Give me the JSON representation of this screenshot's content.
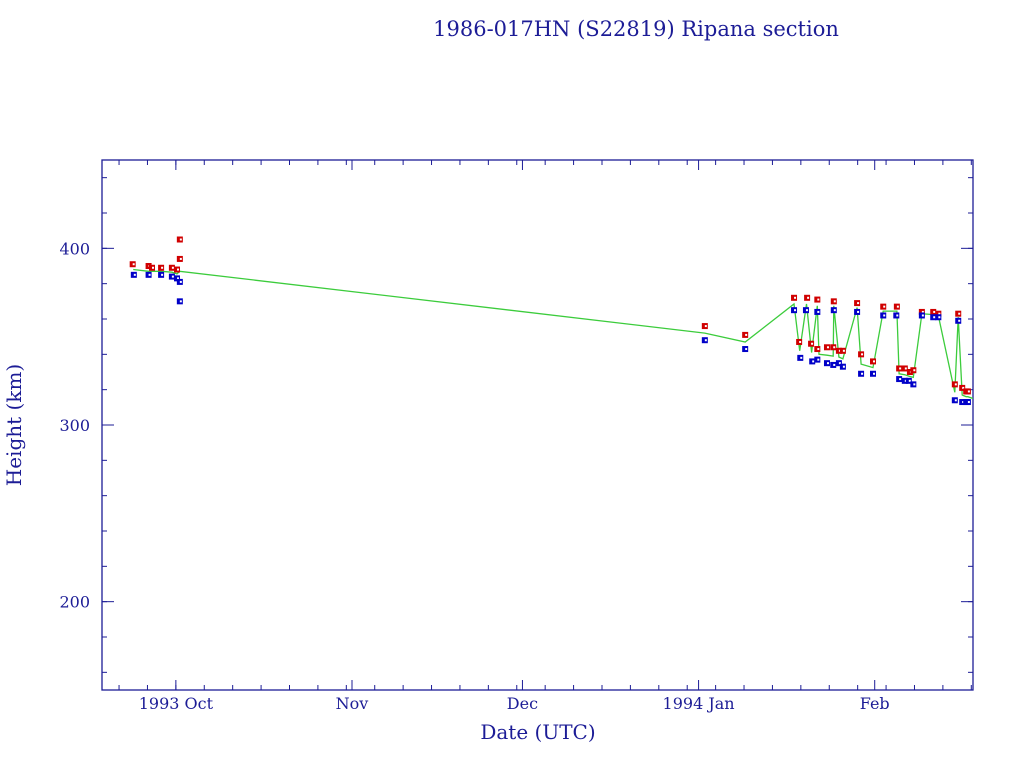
{
  "chart_data": {
    "type": "scatter",
    "title": "1986-017HN (S22819) Ripana section",
    "xlabel": "Date (UTC)",
    "ylabel": "Height (km)",
    "x_units": "days since 1993 Oct 1",
    "xlim": [
      -13,
      140.3
    ],
    "ylim": [
      150,
      450
    ],
    "grid": false,
    "x_major_ticks": [
      {
        "value": 0,
        "label": "1993 Oct"
      },
      {
        "value": 31,
        "label": "Nov"
      },
      {
        "value": 61,
        "label": "Dec"
      },
      {
        "value": 92,
        "label": "1994 Jan"
      },
      {
        "value": 123,
        "label": "Feb"
      }
    ],
    "x_minor_tick_step_days": 5,
    "y_major_ticks": [
      {
        "value": 200,
        "label": "200"
      },
      {
        "value": 300,
        "label": "300"
      },
      {
        "value": 400,
        "label": "400"
      }
    ],
    "y_minor_tick_step": 20,
    "colors": {
      "axis": "#1c1c96",
      "apogee": "#d00000",
      "perigee": "#0000c8",
      "mean_line": "#3ccc3c"
    },
    "series": [
      {
        "name": "apogee",
        "marker": "square",
        "x": [
          -7.6,
          -4.8,
          -4.2,
          -2.6,
          -0.7,
          0.2,
          0.7,
          0.7,
          93.1,
          100.2,
          108.8,
          109.7,
          111.1,
          111.8,
          112.9,
          112.9,
          114.6,
          115.7,
          115.8,
          116.7,
          117.4,
          119.9,
          120.6,
          122.7,
          124.5,
          126.9,
          127.3,
          128.3,
          129.2,
          129.8,
          131.3,
          133.3,
          134.2,
          137.1,
          137.7,
          138.4,
          139.1,
          139.4
        ],
        "y": [
          391,
          390,
          389,
          389,
          389,
          388,
          405,
          394,
          356,
          351,
          372,
          347,
          372,
          346,
          371,
          343,
          344,
          344,
          370,
          342,
          342,
          369,
          340,
          336,
          367,
          367,
          332,
          332,
          330,
          331,
          364,
          364,
          363,
          323,
          363,
          321,
          319,
          319
        ]
      },
      {
        "name": "perigee",
        "marker": "square",
        "x": [
          -7.4,
          -4.8,
          -2.6,
          -0.7,
          0.2,
          0.7,
          0.7,
          93.1,
          100.2,
          108.8,
          109.9,
          110.9,
          112.0,
          112.9,
          112.9,
          114.6,
          115.7,
          115.8,
          116.7,
          117.4,
          119.9,
          120.6,
          122.7,
          124.5,
          126.8,
          127.3,
          128.3,
          129.0,
          129.8,
          131.3,
          133.3,
          134.2,
          137.1,
          137.7,
          138.4,
          139.1,
          139.4
        ],
        "y": [
          385,
          385,
          385,
          384,
          383,
          381,
          370,
          348,
          343,
          365,
          338,
          365,
          336,
          364,
          337,
          335,
          334,
          365,
          335,
          333,
          364,
          329,
          329,
          362,
          362,
          326,
          325,
          325,
          323,
          362,
          361,
          361,
          314,
          359,
          313,
          313,
          313
        ]
      },
      {
        "name": "mean",
        "type": "line",
        "x": [
          -7.5,
          -4.8,
          -2.6,
          -0.7,
          0.2,
          0.7,
          93.1,
          100.2,
          108.8,
          109.8,
          111.0,
          111.9,
          112.9,
          113.2,
          114.6,
          115.7,
          115.8,
          116.7,
          117.4,
          119.9,
          120.6,
          122.7,
          124.5,
          126.9,
          127.3,
          128.3,
          129.1,
          129.8,
          131.3,
          133.3,
          134.2,
          137.1,
          137.7,
          138.4,
          139.1,
          139.4,
          140.3
        ],
        "y": [
          388,
          387,
          387,
          386.5,
          385.5,
          387,
          352,
          347,
          368.5,
          342,
          368.5,
          341,
          367.5,
          340,
          339.5,
          339,
          367.5,
          338.5,
          337.5,
          366.5,
          334.5,
          332.5,
          364.5,
          364.5,
          329,
          328.5,
          327.5,
          327,
          363,
          362.5,
          362,
          318.5,
          361,
          317,
          316,
          316,
          315
        ]
      }
    ]
  }
}
